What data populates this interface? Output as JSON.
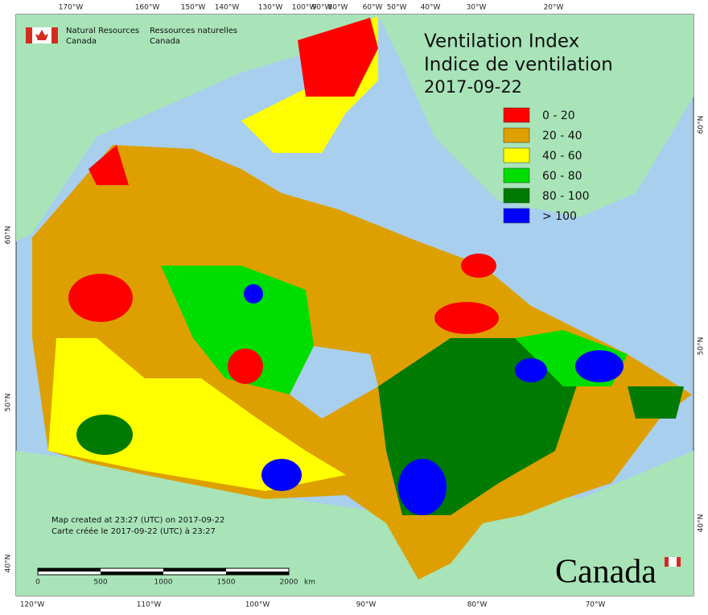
{
  "header": {
    "agency_en": [
      "Natural Resources",
      "Canada"
    ],
    "agency_fr": [
      "Ressources naturelles",
      "Canada"
    ]
  },
  "title": [
    "Ventilation Index",
    "Indice de ventilation",
    "2017-09-22"
  ],
  "legend": [
    {
      "label": "0 - 20",
      "color": "#ff0000"
    },
    {
      "label": "20 - 40",
      "color": "#dda000"
    },
    {
      "label": "40 - 60",
      "color": "#ffff00"
    },
    {
      "label": "60 - 80",
      "color": "#00dd00"
    },
    {
      "label": "80 - 100",
      "color": "#007a00"
    },
    {
      "label": "> 100",
      "color": "#0000ff"
    }
  ],
  "top_labels": [
    "170°W",
    "160°W",
    "150°W",
    "140°W",
    "130°W",
    "100°W",
    "90°W",
    "80°W",
    "60°W",
    "50°W",
    "40°W",
    "30°W",
    "20°W"
  ],
  "bottom_labels": [
    "120°W",
    "110°W",
    "100°W",
    "90°W",
    "80°W",
    "70°W"
  ],
  "left_labels": [
    "60°N",
    "50°N",
    "40°N"
  ],
  "right_labels": [
    "60°N",
    "50°N",
    "40°N"
  ],
  "footer": [
    "Map created at 23:27 (UTC) on 2017-09-22",
    "Carte créée le 2017-09-22 (UTC) à 23:27"
  ],
  "scale": {
    "ticks": [
      "0",
      "500",
      "1000",
      "1500",
      "2000"
    ],
    "unit": "km"
  },
  "wordmark": "Canada"
}
